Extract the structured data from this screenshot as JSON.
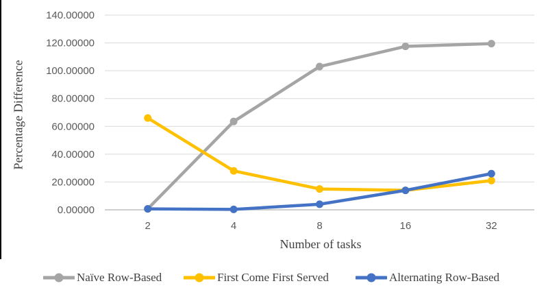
{
  "chart_data": {
    "type": "line",
    "title": "",
    "categories": [
      "2",
      "4",
      "8",
      "16",
      "32"
    ],
    "series": [
      {
        "name": "Naïve Row-Based",
        "color": "#a5a5a5",
        "values": [
          0.7,
          63.5,
          103.0,
          117.5,
          119.5
        ]
      },
      {
        "name": "First Come First Served",
        "color": "#ffc000",
        "values": [
          66.0,
          28.0,
          15.0,
          14.0,
          21.0
        ]
      },
      {
        "name": "Alternating Row-Based",
        "color": "#4472c4",
        "values": [
          0.7,
          0.3,
          4.0,
          14.0,
          26.0
        ]
      }
    ],
    "xlabel": "Number of tasks",
    "ylabel": "Percentage Difference",
    "ylim": [
      0,
      140
    ],
    "ytick_labels": [
      "0.00000",
      "20.00000",
      "40.00000",
      "60.00000",
      "80.00000",
      "100.00000",
      "120.00000",
      "140.00000"
    ],
    "grid": true,
    "legend_position": "bottom",
    "colors": {
      "gridline": "#d9d9d9",
      "axis_line": "#bfbfbf",
      "tick_text": "#595959",
      "title_text": "#404040",
      "edge_bar": "#000000"
    }
  }
}
